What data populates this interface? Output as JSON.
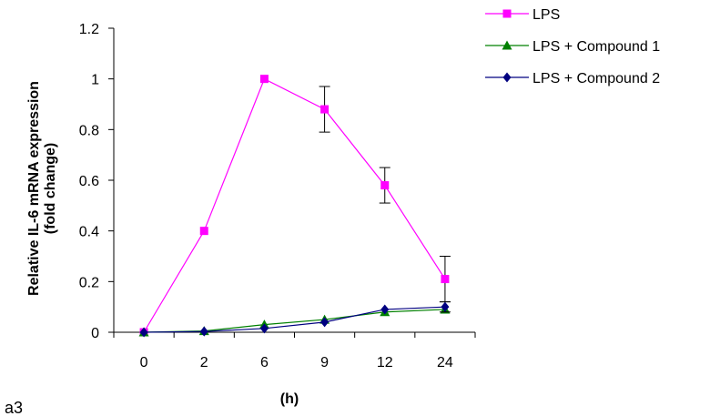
{
  "chart_data": {
    "type": "line",
    "panel_label": "a3",
    "xlabel": "(h)",
    "ylabel_line1": "Relative IL-6 mRNA expression",
    "ylabel_line2": "(fold change)",
    "categories": [
      "0",
      "2",
      "6",
      "9",
      "12",
      "24"
    ],
    "ylim": [
      0,
      1.2
    ],
    "yticks": [
      0,
      0.2,
      0.4,
      0.6,
      0.8,
      1,
      1.2
    ],
    "ytick_labels": [
      "0",
      "0.2",
      "0.4",
      "0.6",
      "0.8",
      "1",
      "1.2"
    ],
    "legend_position": "top-right",
    "grid": false,
    "series": [
      {
        "name": "LPS",
        "color": "#ff00ff",
        "marker": "square",
        "values": [
          0.0,
          0.4,
          1.0,
          0.88,
          0.58,
          0.21
        ],
        "error": [
          0,
          0,
          0,
          0.09,
          0.07,
          0.09
        ]
      },
      {
        "name": "LPS + Compound 1",
        "color": "#008000",
        "marker": "triangle",
        "values": [
          0.0,
          0.005,
          0.03,
          0.05,
          0.08,
          0.09
        ],
        "error": [
          0,
          0,
          0,
          0,
          0,
          0
        ]
      },
      {
        "name": "LPS + Compound 2",
        "color": "#000080",
        "marker": "diamond",
        "values": [
          0.0,
          0.003,
          0.015,
          0.04,
          0.09,
          0.1
        ],
        "error": [
          0,
          0,
          0,
          0,
          0,
          0.02
        ]
      }
    ]
  }
}
